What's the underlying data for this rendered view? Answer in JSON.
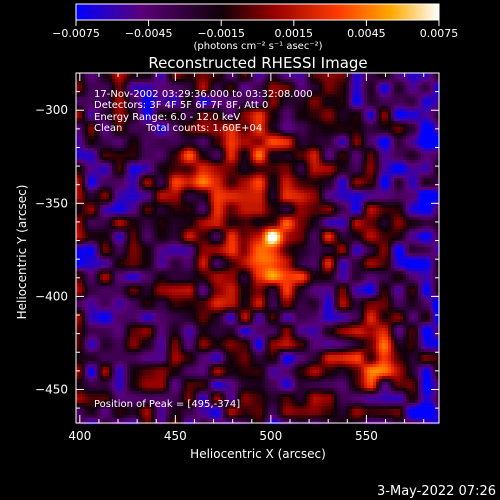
{
  "chart_data": {
    "type": "heatmap",
    "title": "Reconstructed RHESSI Image",
    "xlabel": "Heliocentric X (arcsec)",
    "ylabel": "Heliocentric Y (arcsec)",
    "xlim": [
      398,
      588
    ],
    "ylim": [
      -468,
      -280
    ],
    "xticks": [
      400,
      450,
      500,
      550
    ],
    "yticks": [
      -300,
      -350,
      -400,
      -450
    ],
    "colorbar": {
      "range": [
        -0.0075,
        0.0075
      ],
      "tick_labels": [
        "−0.0075",
        "−0.0045",
        "−0.0015",
        "0.0015",
        "0.0045",
        "0.0075"
      ],
      "unit_label": "(photons cm⁻² s⁻¹ asec⁻²)",
      "colors": [
        "#0000ff",
        "#5a007a",
        "#000000",
        "#9a0000",
        "#ff3a00",
        "#ffaa00",
        "#ffffff"
      ]
    },
    "annotations": {
      "time_range": "17-Nov-2002 03:29:36.000 to 03:32:08.000",
      "detectors": "Detectors: 3F 4F 5F 6F 7F 8F, Att 0",
      "energy_range": "Energy Range: 6.0 - 12.0 keV",
      "clean": "Clean",
      "total_counts": "Total counts: 1.60E+04",
      "peak": "Position of Peak = [495,-374]"
    },
    "peak": {
      "x": 495,
      "y": -374
    },
    "sources": [
      {
        "x": 495,
        "y": -374,
        "intensity": 1.0
      },
      {
        "x": 555,
        "y": -432,
        "intensity": 0.55
      },
      {
        "x": 460,
        "y": -330,
        "intensity": 0.4
      },
      {
        "x": 500,
        "y": -318,
        "intensity": 0.4
      }
    ]
  },
  "footer": {
    "timestamp": "3-May-2022 07:26"
  }
}
